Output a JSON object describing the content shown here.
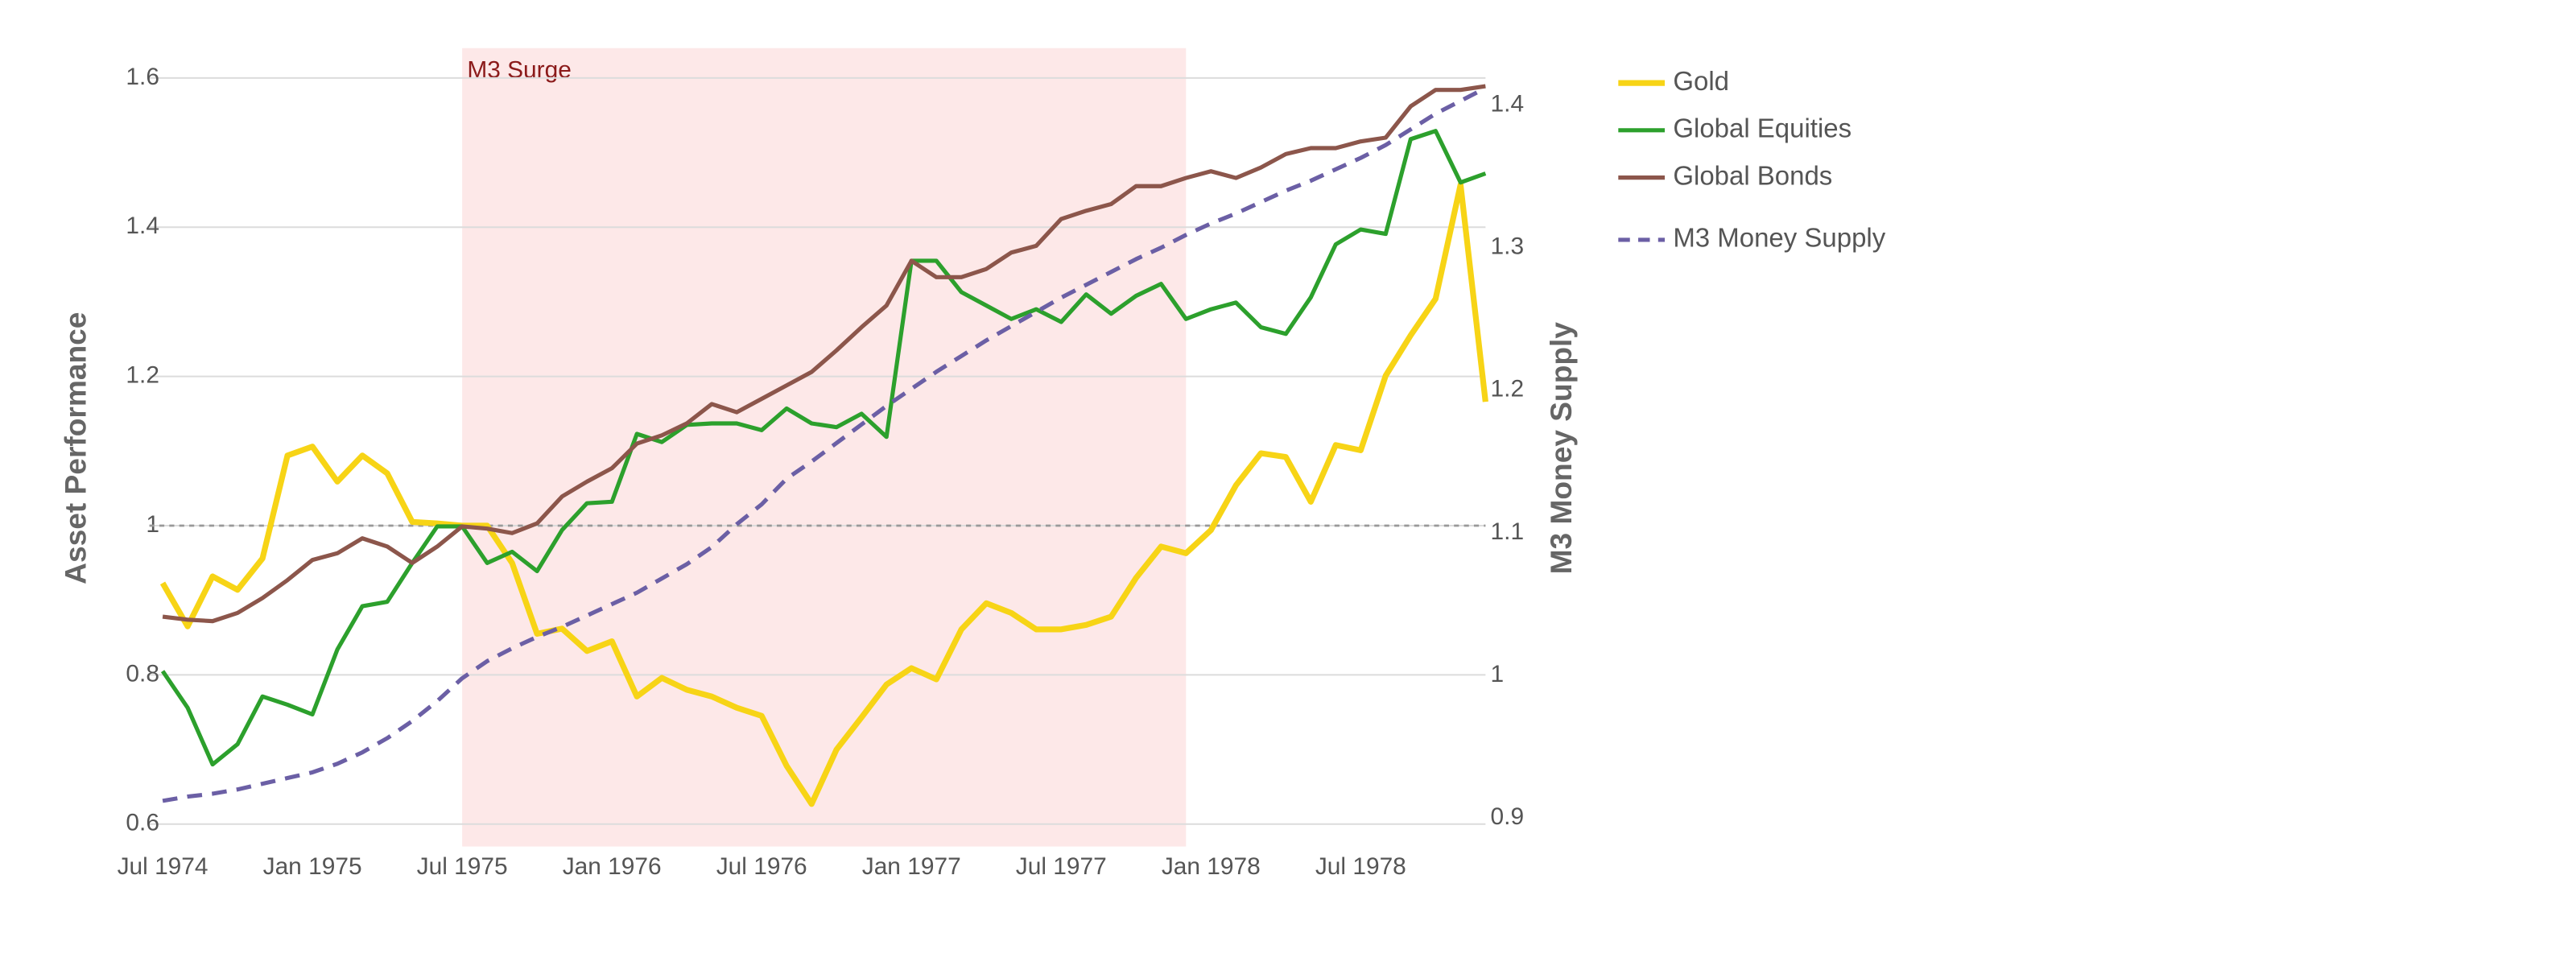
{
  "chart_data": {
    "type": "line",
    "x": [
      "1974-07",
      "1974-08",
      "1974-09",
      "1974-10",
      "1974-11",
      "1974-12",
      "1975-01",
      "1975-02",
      "1975-03",
      "1975-04",
      "1975-05",
      "1975-06",
      "1975-07",
      "1975-08",
      "1975-09",
      "1975-10",
      "1975-11",
      "1975-12",
      "1976-01",
      "1976-02",
      "1976-03",
      "1976-04",
      "1976-05",
      "1976-06",
      "1976-07",
      "1976-08",
      "1976-09",
      "1976-10",
      "1976-11",
      "1976-12",
      "1977-01",
      "1977-02",
      "1977-03",
      "1977-04",
      "1977-05",
      "1977-06",
      "1977-07",
      "1977-08",
      "1977-09",
      "1977-10",
      "1977-11",
      "1977-12",
      "1978-01",
      "1978-02",
      "1978-03",
      "1978-04",
      "1978-05",
      "1978-06",
      "1978-07",
      "1978-08",
      "1978-09",
      "1978-10",
      "1978-11",
      "1978-12"
    ],
    "series": [
      {
        "name": "Gold",
        "color": "#f7d416",
        "width": 3.5,
        "values": [
          0.923,
          0.865,
          0.932,
          0.914,
          0.956,
          1.094,
          1.106,
          1.059,
          1.094,
          1.07,
          1.005,
          1.003,
          1.0,
          1.0,
          0.95,
          0.855,
          0.862,
          0.832,
          0.845,
          0.771,
          0.796,
          0.78,
          0.771,
          0.756,
          0.745,
          0.678,
          0.627,
          0.7,
          0.743,
          0.787,
          0.809,
          0.794,
          0.861,
          0.896,
          0.883,
          0.861,
          0.861,
          0.867,
          0.878,
          0.93,
          0.972,
          0.963,
          0.994,
          1.054,
          1.097,
          1.092,
          1.032,
          1.108,
          1.101,
          1.201,
          1.255,
          1.304,
          1.457,
          1.166
        ]
      },
      {
        "name": "Global Equities",
        "color": "#2ca02c",
        "width": 2.5,
        "values": [
          0.805,
          0.756,
          0.68,
          0.707,
          0.771,
          0.76,
          0.747,
          0.834,
          0.892,
          0.898,
          0.95,
          0.999,
          0.999,
          0.95,
          0.965,
          0.939,
          0.994,
          1.03,
          1.032,
          1.123,
          1.112,
          1.135,
          1.137,
          1.137,
          1.128,
          1.157,
          1.137,
          1.132,
          1.15,
          1.119,
          1.355,
          1.355,
          1.313,
          1.295,
          1.277,
          1.29,
          1.273,
          1.31,
          1.284,
          1.308,
          1.324,
          1.277,
          1.29,
          1.299,
          1.266,
          1.257,
          1.306,
          1.377,
          1.397,
          1.391,
          1.518,
          1.529,
          1.46,
          1.472
        ]
      },
      {
        "name": "Global Bonds",
        "color": "#8c564b",
        "width": 2.5,
        "values": [
          0.878,
          0.874,
          0.872,
          0.883,
          0.903,
          0.927,
          0.954,
          0.963,
          0.983,
          0.972,
          0.95,
          0.972,
          0.999,
          0.996,
          0.99,
          1.003,
          1.039,
          1.059,
          1.077,
          1.11,
          1.121,
          1.137,
          1.163,
          1.152,
          1.17,
          1.188,
          1.206,
          1.235,
          1.266,
          1.295,
          1.355,
          1.333,
          1.333,
          1.344,
          1.366,
          1.375,
          1.411,
          1.422,
          1.431,
          1.455,
          1.455,
          1.466,
          1.475,
          1.466,
          1.48,
          1.498,
          1.506,
          1.506,
          1.515,
          1.52,
          1.562,
          1.584,
          1.584,
          1.589
        ]
      },
      {
        "name": "M3 Money Supply",
        "color": "#6b5fa5",
        "width": 2.5,
        "dash": true,
        "axis": "y2",
        "values": [
          0.912,
          0.915,
          0.917,
          0.92,
          0.924,
          0.928,
          0.932,
          0.938,
          0.946,
          0.956,
          0.968,
          0.982,
          0.998,
          1.01,
          1.019,
          1.027,
          1.034,
          1.042,
          1.05,
          1.058,
          1.068,
          1.078,
          1.09,
          1.106,
          1.12,
          1.138,
          1.15,
          1.163,
          1.176,
          1.189,
          1.201,
          1.213,
          1.224,
          1.235,
          1.245,
          1.255,
          1.265,
          1.274,
          1.283,
          1.292,
          1.3,
          1.309,
          1.317,
          1.324,
          1.332,
          1.34,
          1.347,
          1.355,
          1.363,
          1.372,
          1.383,
          1.394,
          1.403,
          1.412
        ]
      }
    ],
    "xlim": [
      "1974-07",
      "1978-12"
    ],
    "xticks": [
      {
        "value": "1974-07",
        "label": "Jul 1974"
      },
      {
        "value": "1975-01",
        "label": "Jan 1975"
      },
      {
        "value": "1975-07",
        "label": "Jul 1975"
      },
      {
        "value": "1976-01",
        "label": "Jan 1976"
      },
      {
        "value": "1976-07",
        "label": "Jul 1976"
      },
      {
        "value": "1977-01",
        "label": "Jan 1977"
      },
      {
        "value": "1977-07",
        "label": "Jul 1977"
      },
      {
        "value": "1978-01",
        "label": "Jan 1978"
      },
      {
        "value": "1978-07",
        "label": "Jul 1978"
      }
    ],
    "ylim": [
      0.57,
      1.64
    ],
    "yticks": [
      0.6,
      0.8,
      1,
      1.2,
      1.4,
      1.6
    ],
    "y2lim": [
      0.88,
      1.44
    ],
    "y2ticks": [
      0.9,
      1,
      1.1,
      1.2,
      1.3,
      1.4
    ],
    "ylabel": "Asset Performance",
    "y2label": "M3 Money Supply",
    "grid": true,
    "reference_line": {
      "axis": "y",
      "value": 1
    },
    "shaded_region": {
      "x0": "1975-07",
      "x1": "1977-12",
      "label": "M3 Surge",
      "color": "#fde8e8"
    },
    "legend": "right"
  }
}
